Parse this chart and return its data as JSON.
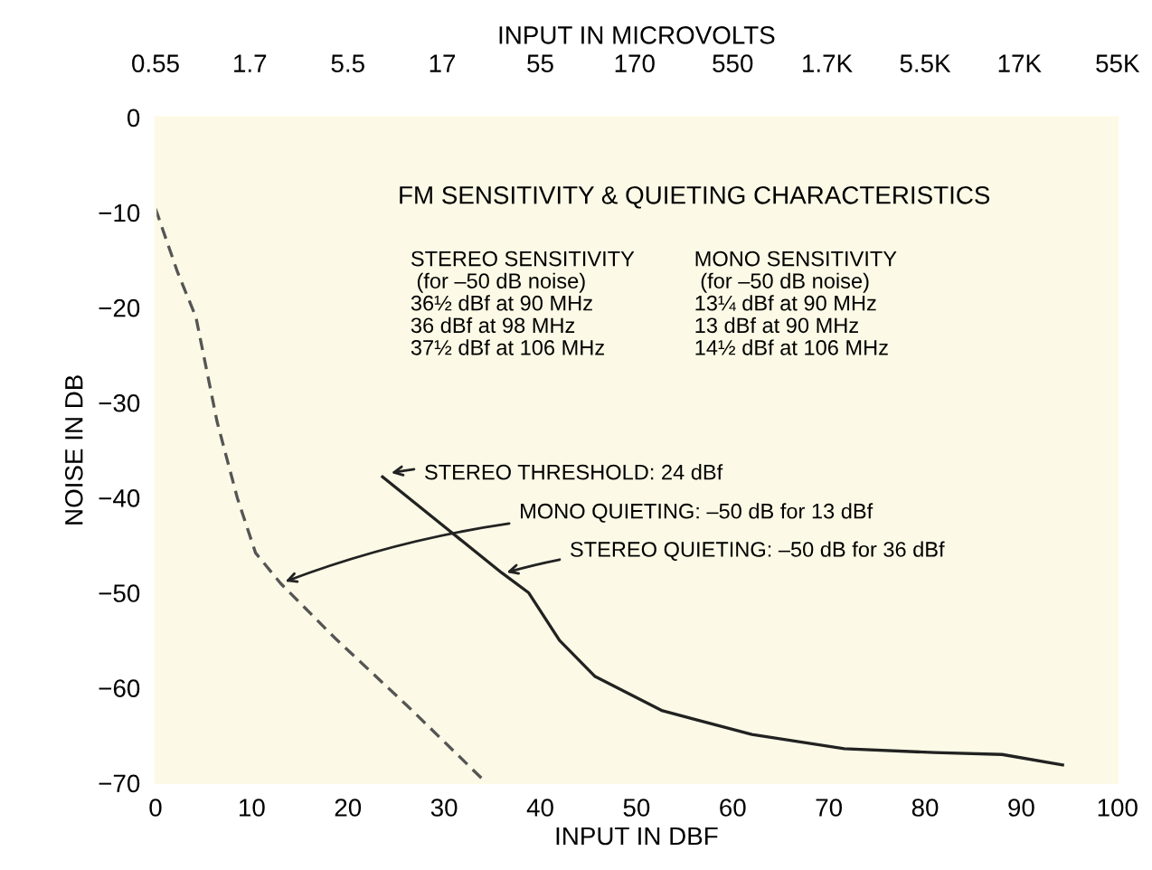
{
  "chart_data": {
    "type": "line",
    "title": "FM SENSITIVITY & QUIETING CHARACTERISTICS",
    "xlabel": "INPUT IN DBF",
    "ylabel": "NOISE IN DB",
    "x2label": "INPUT IN MICROVOLTS",
    "xlim": [
      0,
      100
    ],
    "xticks": [
      0,
      10,
      20,
      30,
      40,
      50,
      60,
      70,
      80,
      90,
      100
    ],
    "x2lim": [
      0.55,
      55000
    ],
    "log": "x2",
    "x2ticks": [
      0.55,
      1.7,
      5.5,
      17,
      55,
      170,
      550,
      {
        "value": 1700,
        "label": "1.7K"
      },
      {
        "value": 5500,
        "label": "5.5K"
      },
      {
        "value": 17000,
        "label": "17K"
      },
      {
        "value": 55000,
        "label": "55K"
      }
    ],
    "ylim": [
      -70,
      0
    ],
    "yticks": [
      0,
      -10,
      -20,
      -30,
      -40,
      -50,
      -60,
      -70
    ],
    "grid": false,
    "legend": false,
    "marker": "none",
    "series": [
      {
        "color": "#555555",
        "line_style": "dashed",
        "x": [
          0,
          2.3,
          4.2,
          6.4,
          8.5,
          10.4,
          13,
          18.7,
          26.3,
          34
        ],
        "values": [
          -9.6,
          -16.3,
          -21,
          -32,
          -40,
          -45.8,
          -49,
          -54.8,
          -62,
          -69.6
        ]
      },
      {
        "color": "#222222",
        "line_style": "solid",
        "x": [
          23.6,
          30.6,
          36,
          38.8,
          42,
          45.7,
          52.7,
          62,
          71.6,
          81,
          88,
          94.3
        ],
        "values": [
          -37.8,
          -43.5,
          -47.9,
          -50,
          -55,
          -58.8,
          -62.4,
          -64.9,
          -66.4,
          -66.8,
          -67,
          -68.1
        ]
      }
    ],
    "annotations": [
      "STEREO SENSITIVITY\n (for –50 dB noise)\n36½ dBf at 90 MHz\n36 dBf at 98 MHz\n37½ dBf at 106 MHz",
      "MONO SENSITIVITY\n (for –50 dB noise)\n13¼ dBf at 90 MHz\n13 dBf at 90 MHz\n14½ dBf at 106 MHz",
      {
        "text": "STEREO THRESHOLD: 24 dBf",
        "x": 24,
        "y": -37.5
      },
      {
        "text": "MONO QUIETING: –50 dB for 13 dBf",
        "x": 13,
        "y": -49
      },
      {
        "text": "STEREO QUIETING: –50 dB for 36 dBf",
        "x": 36,
        "y": -48
      }
    ]
  }
}
